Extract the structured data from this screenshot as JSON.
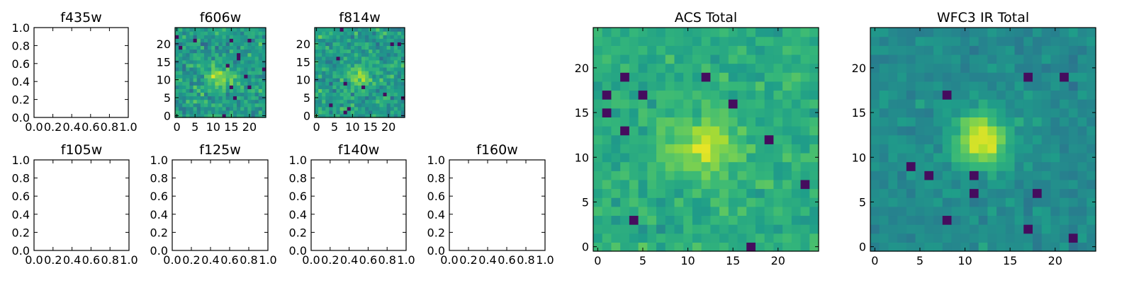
{
  "chart_data": [
    {
      "type": "empty",
      "title": "f435w",
      "xlim": [
        0,
        1
      ],
      "ylim": [
        0,
        1
      ],
      "xticks": [
        "0.0",
        "0.2",
        "0.4",
        "0.6",
        "0.8",
        "1.0"
      ],
      "yticks": [
        "0.0",
        "0.2",
        "0.4",
        "0.6",
        "0.8",
        "1.0"
      ]
    },
    {
      "type": "heatmap",
      "title": "f606w",
      "grid": [
        25,
        25
      ],
      "colormap": "viridis",
      "hot_spot": [
        12,
        11
      ],
      "xticks": [
        "0",
        "5",
        "10",
        "15",
        "20"
      ],
      "yticks": [
        "0",
        "5",
        "10",
        "15",
        "20"
      ]
    },
    {
      "type": "heatmap",
      "title": "f814w",
      "grid": [
        25,
        25
      ],
      "colormap": "viridis",
      "hot_spot": [
        12,
        11
      ],
      "xticks": [
        "0",
        "5",
        "10",
        "15",
        "20"
      ],
      "yticks": [
        "0",
        "5",
        "10",
        "15",
        "20"
      ]
    },
    {
      "type": "empty",
      "title": "f105w",
      "xlim": [
        0,
        1
      ],
      "ylim": [
        0,
        1
      ],
      "xticks": [
        "0.0",
        "0.2",
        "0.4",
        "0.6",
        "0.8",
        "1.0"
      ],
      "yticks": [
        "0.0",
        "0.2",
        "0.4",
        "0.6",
        "0.8",
        "1.0"
      ]
    },
    {
      "type": "empty",
      "title": "f125w",
      "xlim": [
        0,
        1
      ],
      "ylim": [
        0,
        1
      ],
      "xticks": [
        "0.0",
        "0.2",
        "0.4",
        "0.6",
        "0.8",
        "1.0"
      ],
      "yticks": [
        "0.0",
        "0.2",
        "0.4",
        "0.6",
        "0.8",
        "1.0"
      ]
    },
    {
      "type": "empty",
      "title": "f140w",
      "xlim": [
        0,
        1
      ],
      "ylim": [
        0,
        1
      ],
      "xticks": [
        "0.0",
        "0.2",
        "0.4",
        "0.6",
        "0.8",
        "1.0"
      ],
      "yticks": [
        "0.0",
        "0.2",
        "0.4",
        "0.6",
        "0.8",
        "1.0"
      ]
    },
    {
      "type": "empty",
      "title": "f160w",
      "xlim": [
        0,
        1
      ],
      "ylim": [
        0,
        1
      ],
      "xticks": [
        "0.0",
        "0.2",
        "0.4",
        "0.6",
        "0.8",
        "1.0"
      ],
      "yticks": [
        "0.0",
        "0.2",
        "0.4",
        "0.6",
        "0.8",
        "1.0"
      ]
    },
    {
      "type": "heatmap",
      "title": "ACS Total",
      "grid": [
        25,
        25
      ],
      "colormap": "viridis",
      "hot_spot": [
        12,
        11
      ],
      "xticks": [
        "0",
        "5",
        "10",
        "15",
        "20"
      ],
      "yticks": [
        "0",
        "5",
        "10",
        "15",
        "20"
      ]
    },
    {
      "type": "heatmap",
      "title": "WFC3 IR Total",
      "grid": [
        25,
        25
      ],
      "colormap": "viridis",
      "hot_spot": [
        12,
        12
      ],
      "xticks": [
        "0",
        "5",
        "10",
        "15",
        "20"
      ],
      "yticks": [
        "0",
        "5",
        "10",
        "15",
        "20"
      ]
    }
  ]
}
